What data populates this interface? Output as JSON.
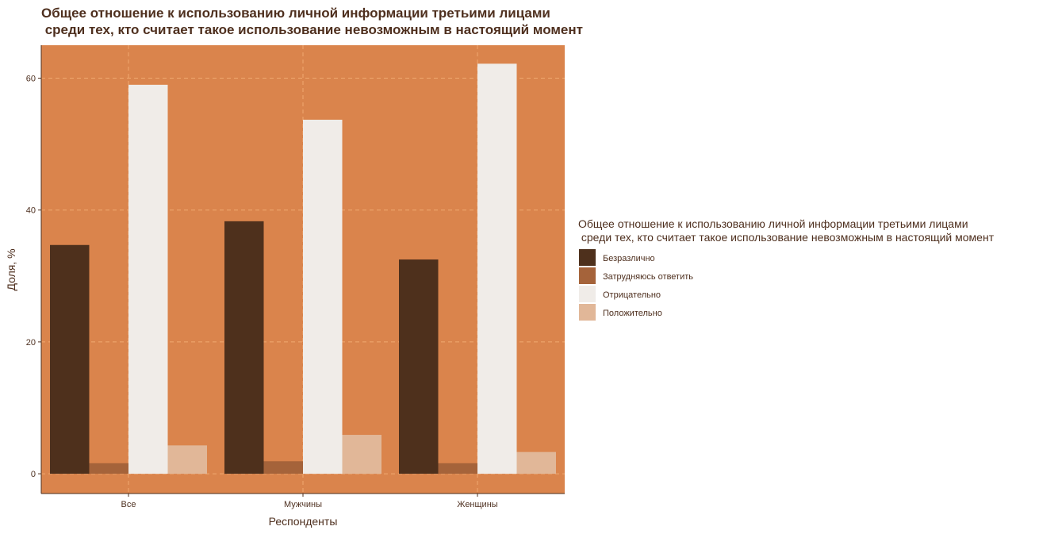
{
  "chart_data": {
    "type": "bar",
    "title_lines": [
      "Общее отношение к использованию личной информации третьими лицами",
      " среди тех, кто считает такое использование невозможным в настоящий момент"
    ],
    "xlabel": "Респонденты",
    "ylabel": "Доля, %",
    "categories": [
      "Все",
      "Мужчины",
      "Женщины"
    ],
    "ylim": [
      -3,
      65
    ],
    "yticks": [
      0,
      20,
      40,
      60
    ],
    "grid": true,
    "legend": {
      "title_lines": [
        "Общее отношение к использованию личной информации третьими лицами",
        " среди тех, кто считает такое использование невозможным в настоящий момент"
      ],
      "position": "right"
    },
    "series": [
      {
        "name": "Безразлично",
        "color": "#4e301c",
        "values": [
          34.7,
          38.3,
          32.5
        ]
      },
      {
        "name": "Затрудняюсь ответить",
        "color": "#a5633a",
        "values": [
          1.6,
          1.9,
          1.6
        ]
      },
      {
        "name": "Отрицательно",
        "color": "#f0ece8",
        "values": [
          59.0,
          53.7,
          62.2
        ]
      },
      {
        "name": "Положительно",
        "color": "#e1b798",
        "values": [
          4.3,
          5.9,
          3.3
        ]
      }
    ],
    "colors": {
      "panel_background": "#da844c",
      "grid_lines": "#f0a970",
      "text": "#4e2f1e"
    }
  }
}
